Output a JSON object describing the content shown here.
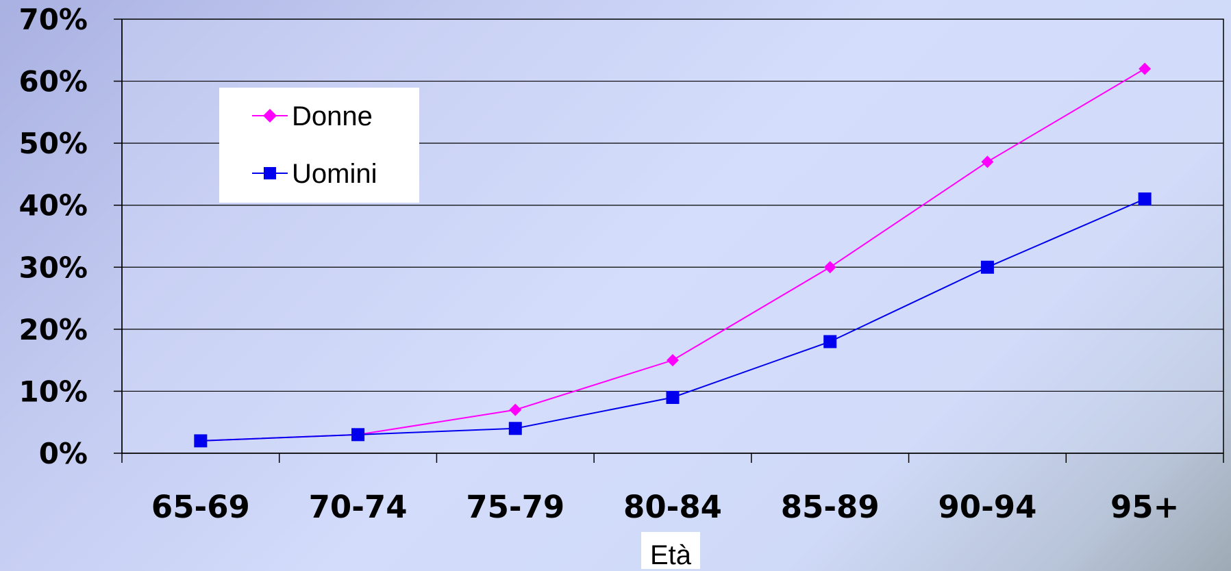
{
  "chart_data": {
    "type": "line",
    "title": "",
    "xlabel": "Età",
    "ylabel": "",
    "categories": [
      "65-69",
      "70-74",
      "75-79",
      "80-84",
      "85-89",
      "90-94",
      "95+"
    ],
    "series": [
      {
        "name": "Donne",
        "values": [
          0.02,
          0.03,
          0.07,
          0.15,
          0.3,
          0.47,
          0.62
        ],
        "color": "#ff00ff",
        "marker": "diamond"
      },
      {
        "name": "Uomini",
        "values": [
          0.02,
          0.03,
          0.04,
          0.09,
          0.18,
          0.3,
          0.41
        ],
        "color": "#0000ee",
        "marker": "square"
      }
    ],
    "ylim": [
      0,
      0.7
    ],
    "yticks": [
      0,
      0.1,
      0.2,
      0.3,
      0.4,
      0.5,
      0.6,
      0.7
    ],
    "ytick_labels": [
      "0%",
      "10%",
      "20%",
      "30%",
      "40%",
      "50%",
      "60%",
      "70%"
    ],
    "grid": "horizontal",
    "legend_position": "top-left"
  }
}
